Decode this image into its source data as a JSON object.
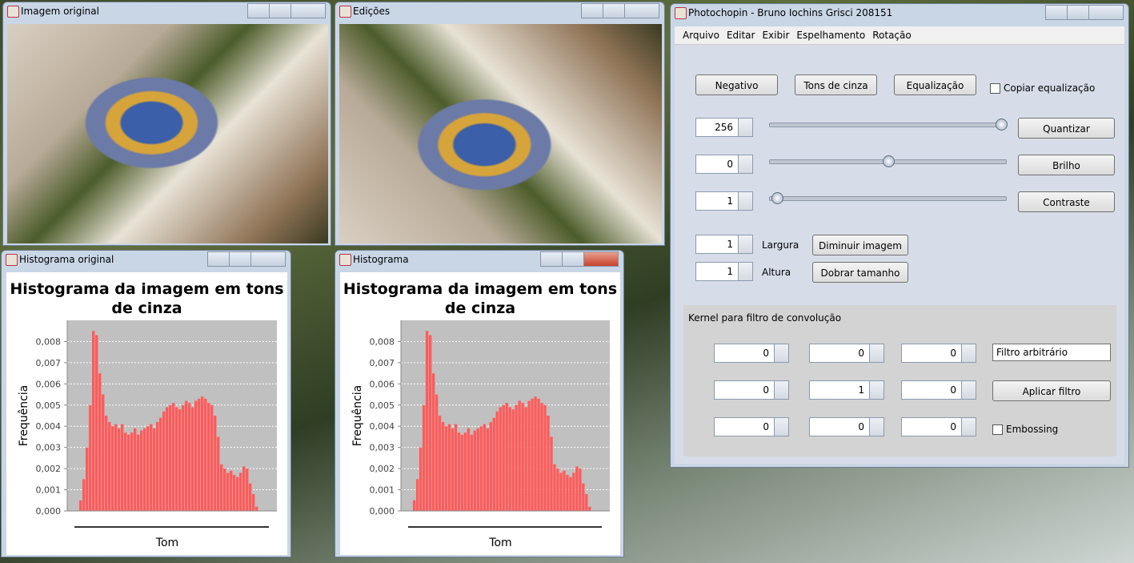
{
  "windows": {
    "original": {
      "title": "Imagem original"
    },
    "edits": {
      "title": "Edições"
    },
    "hist_original": {
      "title": "Histograma original",
      "chart": {
        "type": "bar",
        "title": "Histograma da imagem em tons de cinza",
        "y_label": "Frequência",
        "x_label": "Tom",
        "color": "#ff5b5b",
        "grid": true,
        "ylim": [
          0,
          0.009
        ],
        "yticks": [
          {
            "value": 0,
            "label": "0,000"
          },
          {
            "value": 0.001,
            "label": "0,001"
          },
          {
            "value": 0.002,
            "label": "0,002"
          },
          {
            "value": 0.003,
            "label": "0,003"
          },
          {
            "value": 0.004,
            "label": "0,004"
          },
          {
            "value": 0.005,
            "label": "0,005"
          },
          {
            "value": 0.006,
            "label": "0,006"
          },
          {
            "value": 0.007,
            "label": "0,007"
          },
          {
            "value": 0.008,
            "label": "0,008"
          }
        ],
        "values": [
          0,
          0,
          0,
          0.0005,
          0.0015,
          0.003,
          0.005,
          0.0085,
          0.0083,
          0.0065,
          0.0055,
          0.0045,
          0.0042,
          0.004,
          0.0041,
          0.0039,
          0.0041,
          0.0037,
          0.0036,
          0.0037,
          0.0039,
          0.0036,
          0.0038,
          0.0039,
          0.004,
          0.0041,
          0.0039,
          0.0042,
          0.0044,
          0.0047,
          0.0049,
          0.005,
          0.0051,
          0.0049,
          0.0048,
          0.005,
          0.0052,
          0.0051,
          0.0049,
          0.0052,
          0.0053,
          0.0054,
          0.0053,
          0.0051,
          0.005,
          0.0045,
          0.0035,
          0.0022,
          0.002,
          0.0018,
          0.0019,
          0.0017,
          0.0016,
          0.0018,
          0.0021,
          0.002,
          0.0013,
          0.0008,
          0.0002,
          0,
          0,
          0,
          0,
          0
        ]
      }
    },
    "hist": {
      "title": "Histograma",
      "chart": {
        "type": "bar",
        "title": "Histograma da imagem em tons de cinza",
        "y_label": "Frequência",
        "x_label": "Tom",
        "color": "#ff5b5b",
        "grid": true,
        "ylim": [
          0,
          0.009
        ],
        "yticks": [
          {
            "value": 0,
            "label": "0,000"
          },
          {
            "value": 0.001,
            "label": "0,001"
          },
          {
            "value": 0.002,
            "label": "0,002"
          },
          {
            "value": 0.003,
            "label": "0,003"
          },
          {
            "value": 0.004,
            "label": "0,004"
          },
          {
            "value": 0.005,
            "label": "0,005"
          },
          {
            "value": 0.006,
            "label": "0,006"
          },
          {
            "value": 0.007,
            "label": "0,007"
          },
          {
            "value": 0.008,
            "label": "0,008"
          }
        ],
        "values": [
          0,
          0,
          0,
          0.0005,
          0.0015,
          0.003,
          0.005,
          0.0085,
          0.0083,
          0.0065,
          0.0055,
          0.0045,
          0.0042,
          0.004,
          0.0041,
          0.0039,
          0.0041,
          0.0037,
          0.0036,
          0.0037,
          0.0039,
          0.0036,
          0.0038,
          0.0039,
          0.004,
          0.0041,
          0.0039,
          0.0042,
          0.0044,
          0.0047,
          0.0049,
          0.005,
          0.0051,
          0.0049,
          0.0048,
          0.005,
          0.0052,
          0.0051,
          0.0049,
          0.0052,
          0.0053,
          0.0054,
          0.0053,
          0.0051,
          0.005,
          0.0045,
          0.0035,
          0.0022,
          0.002,
          0.0018,
          0.0019,
          0.0017,
          0.0016,
          0.0018,
          0.0021,
          0.002,
          0.0013,
          0.0008,
          0.0002,
          0,
          0,
          0,
          0,
          0
        ]
      }
    },
    "main": {
      "title": "Photochopin - Bruno Iochins Grisci 208151",
      "menu": [
        "Arquivo",
        "Editar",
        "Exibir",
        "Espelhamento",
        "Rotação"
      ],
      "top_buttons": [
        "Negativo",
        "Tons de cinza",
        "Equalização"
      ],
      "copy_eq": "Copiar equalização",
      "quant": {
        "value": 256,
        "button": "Quantizar"
      },
      "bright": {
        "value": 0,
        "button": "Brilho"
      },
      "contrast": {
        "value": 1,
        "button": "Contraste"
      },
      "width": {
        "value": 1,
        "label": "Largura",
        "button": "Diminuir imagem"
      },
      "height": {
        "value": 1,
        "label": "Altura",
        "button": "Dobrar tamanho"
      },
      "kernel": {
        "title": "Kernel para filtro de convolução",
        "rows": [
          [
            0,
            0,
            0
          ],
          [
            0,
            1,
            0
          ],
          [
            0,
            0,
            0
          ]
        ],
        "filter": "Filtro arbitrário",
        "apply": "Aplicar filtro",
        "emboss": "Embossing"
      }
    }
  }
}
